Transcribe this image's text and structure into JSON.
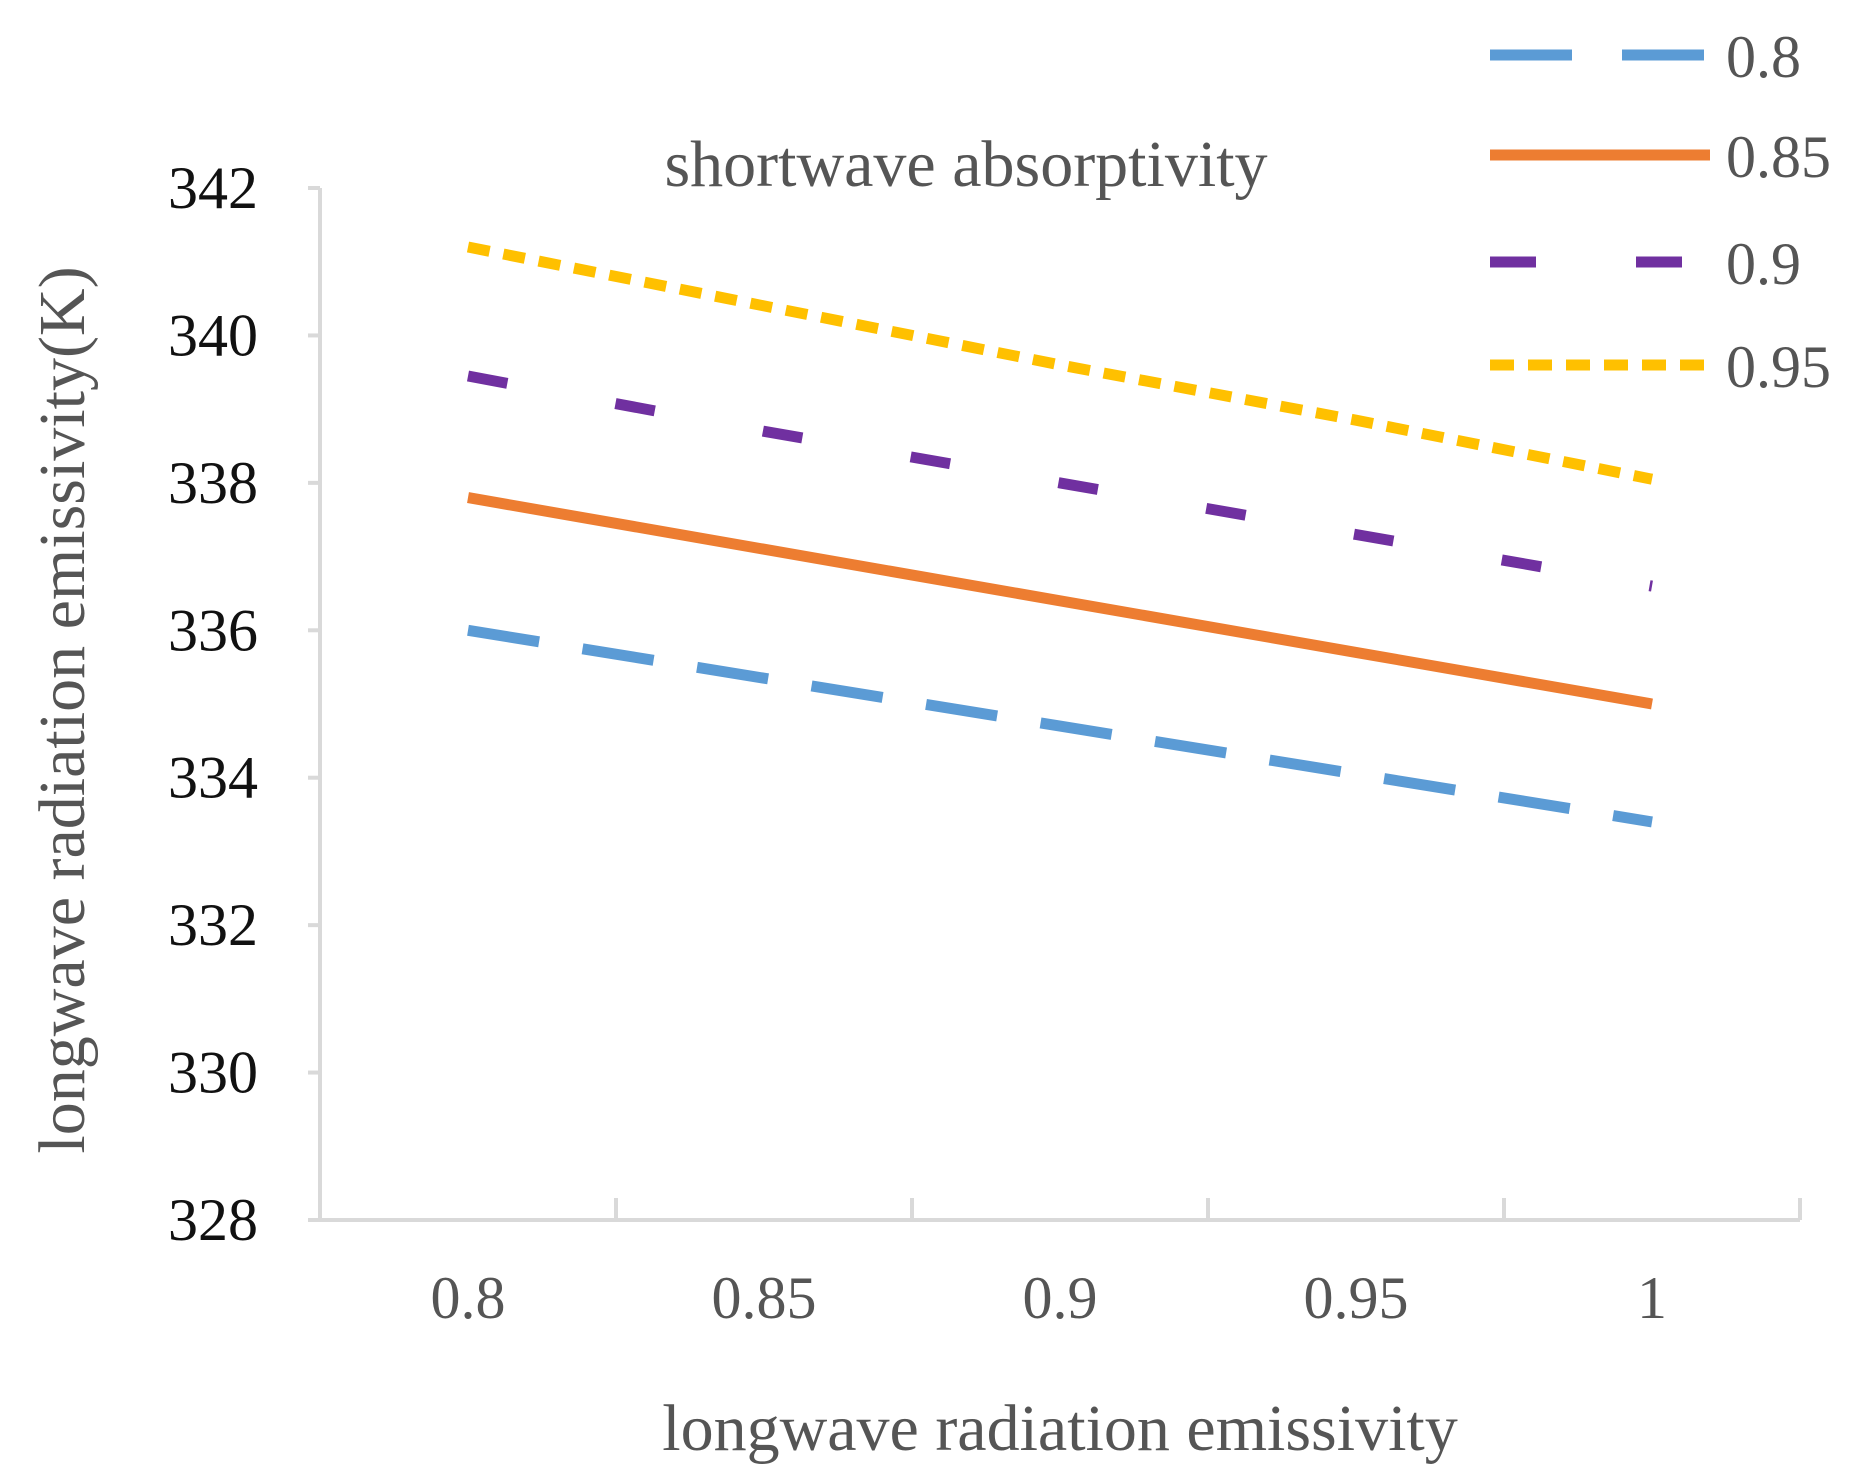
{
  "chart_data": {
    "type": "line",
    "title": "",
    "xlabel": "longwave radiation emissivity",
    "ylabel": "longwave radiation emissivity(K)",
    "x": [
      0.8,
      0.85,
      0.9,
      0.95,
      1
    ],
    "x_tick_labels": [
      "0.8",
      "0.85",
      "0.9",
      "0.95",
      "1"
    ],
    "ylim": [
      328,
      342
    ],
    "y_ticks": [
      328,
      330,
      332,
      334,
      336,
      338,
      340,
      342
    ],
    "y_tick_labels": [
      "328",
      "330",
      "332",
      "334",
      "336",
      "338",
      "340",
      "342"
    ],
    "grid": false,
    "legend": {
      "title": "shortwave absorptivity",
      "position": "top-right"
    },
    "series": [
      {
        "name": "0.8",
        "values": [
          336.0,
          335.35,
          334.7,
          334.05,
          333.4
        ],
        "color": "#5B9BD5",
        "dash": "long-dash"
      },
      {
        "name": "0.85",
        "values": [
          337.8,
          337.1,
          336.4,
          335.7,
          335.0
        ],
        "color": "#ED7D31",
        "dash": "solid"
      },
      {
        "name": "0.9",
        "values": [
          339.45,
          338.7,
          338.0,
          337.3,
          336.6
        ],
        "color": "#7030A0",
        "dash": "dash"
      },
      {
        "name": "0.95",
        "values": [
          341.2,
          340.4,
          339.6,
          338.85,
          338.05
        ],
        "color": "#FFC000",
        "dash": "short-dash"
      }
    ]
  }
}
